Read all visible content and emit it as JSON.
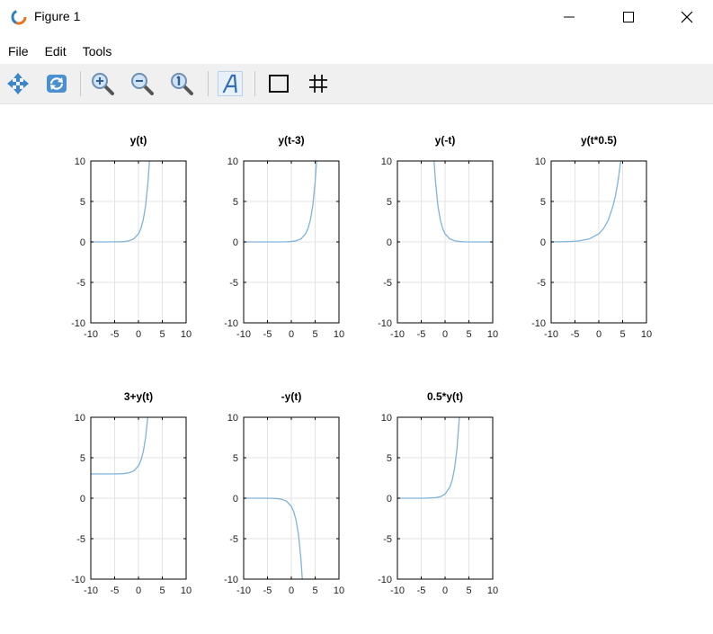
{
  "window": {
    "title": "Figure 1"
  },
  "menu": {
    "items": [
      "File",
      "Edit",
      "Tools"
    ]
  },
  "toolbar": {
    "tools": [
      "pan-icon",
      "rotate-icon",
      "zoom-in-icon",
      "zoom-out-icon",
      "zoom-reset-icon",
      "text-icon",
      "axes-box-icon",
      "grid-icon"
    ]
  },
  "colors": {
    "line": "#7fb3d9",
    "grid": "#e3e3e3",
    "axis": "#000000"
  },
  "chart_data": [
    {
      "type": "line",
      "title": "y(t)",
      "xlim": [
        -10,
        10
      ],
      "ylim": [
        -10,
        10
      ],
      "xticks": [
        -10,
        -5,
        0,
        5,
        10
      ],
      "yticks": [
        10,
        5,
        0,
        -5,
        -10
      ],
      "grid": true,
      "expr": "exp(t)",
      "xs": [
        -10,
        -8,
        -6,
        -4,
        -3,
        -2,
        -1,
        0,
        0.5,
        1,
        1.5,
        2,
        2.3
      ],
      "ys": [
        0.0,
        0.0003,
        0.0025,
        0.018,
        0.05,
        0.135,
        0.368,
        1.0,
        1.65,
        2.72,
        4.48,
        7.39,
        9.97
      ]
    },
    {
      "type": "line",
      "title": "y(t-3)",
      "xlim": [
        -10,
        10
      ],
      "ylim": [
        -10,
        10
      ],
      "xticks": [
        -10,
        -5,
        0,
        5,
        10
      ],
      "yticks": [
        10,
        5,
        0,
        -5,
        -10
      ],
      "grid": true,
      "expr": "exp(t-3)",
      "xs": [
        -10,
        -6,
        -3,
        -1,
        0,
        1,
        2,
        3,
        3.5,
        4,
        4.5,
        5,
        5.3
      ],
      "ys": [
        0.0,
        0.0001,
        0.0025,
        0.018,
        0.05,
        0.135,
        0.368,
        1.0,
        1.65,
        2.72,
        4.48,
        7.39,
        9.97
      ]
    },
    {
      "type": "line",
      "title": "y(-t)",
      "xlim": [
        -10,
        10
      ],
      "ylim": [
        -10,
        10
      ],
      "xticks": [
        -10,
        -5,
        0,
        5,
        10
      ],
      "yticks": [
        10,
        5,
        0,
        -5,
        -10
      ],
      "grid": true,
      "expr": "exp(-t)",
      "xs": [
        -2.3,
        -2,
        -1.5,
        -1,
        -0.5,
        0,
        1,
        2,
        3,
        4,
        6,
        8,
        10
      ],
      "ys": [
        9.97,
        7.39,
        4.48,
        2.72,
        1.65,
        1.0,
        0.368,
        0.135,
        0.05,
        0.018,
        0.0025,
        0.0003,
        0.0
      ]
    },
    {
      "type": "line",
      "title": "y(t*0.5)",
      "xlim": [
        -10,
        10
      ],
      "ylim": [
        -10,
        10
      ],
      "xticks": [
        -10,
        -5,
        0,
        5,
        10
      ],
      "yticks": [
        10,
        5,
        0,
        -5,
        -10
      ],
      "grid": true,
      "expr": "exp(0.5*t)",
      "xs": [
        -10,
        -8,
        -6,
        -4,
        -2,
        0,
        1,
        2,
        3,
        3.5,
        4,
        4.6
      ],
      "ys": [
        0.0067,
        0.018,
        0.05,
        0.135,
        0.368,
        1.0,
        1.65,
        2.72,
        4.48,
        5.75,
        7.39,
        9.97
      ]
    },
    {
      "type": "line",
      "title": "3+y(t)",
      "xlim": [
        -10,
        10
      ],
      "ylim": [
        -10,
        10
      ],
      "xticks": [
        -10,
        -5,
        0,
        5,
        10
      ],
      "yticks": [
        10,
        5,
        0,
        -5,
        -10
      ],
      "grid": true,
      "expr": "3+exp(t)",
      "xs": [
        -10,
        -6,
        -4,
        -3,
        -2,
        -1,
        0,
        0.5,
        1,
        1.5,
        1.95
      ],
      "ys": [
        3.0,
        3.0025,
        3.018,
        3.05,
        3.135,
        3.368,
        4.0,
        4.65,
        5.72,
        7.48,
        10.03
      ]
    },
    {
      "type": "line",
      "title": "-y(t)",
      "xlim": [
        -10,
        10
      ],
      "ylim": [
        -10,
        10
      ],
      "xticks": [
        -10,
        -5,
        0,
        5,
        10
      ],
      "yticks": [
        10,
        5,
        0,
        -5,
        -10
      ],
      "grid": true,
      "expr": "-exp(t)",
      "xs": [
        -10,
        -8,
        -6,
        -4,
        -3,
        -2,
        -1,
        0,
        0.5,
        1,
        1.5,
        2,
        2.3
      ],
      "ys": [
        0.0,
        -0.0003,
        -0.0025,
        -0.018,
        -0.05,
        -0.135,
        -0.368,
        -1.0,
        -1.65,
        -2.72,
        -4.48,
        -7.39,
        -9.97
      ]
    },
    {
      "type": "line",
      "title": "0.5*y(t)",
      "xlim": [
        -10,
        10
      ],
      "ylim": [
        -10,
        10
      ],
      "xticks": [
        -10,
        -5,
        0,
        5,
        10
      ],
      "yticks": [
        10,
        5,
        0,
        -5,
        -10
      ],
      "grid": true,
      "expr": "0.5*exp(t)",
      "xs": [
        -10,
        -6,
        -4,
        -2,
        -1,
        0,
        1,
        1.5,
        2,
        2.5,
        3.0
      ],
      "ys": [
        0.0,
        0.0012,
        0.009,
        0.068,
        0.184,
        0.5,
        1.36,
        2.24,
        3.69,
        6.09,
        10.04
      ]
    }
  ]
}
